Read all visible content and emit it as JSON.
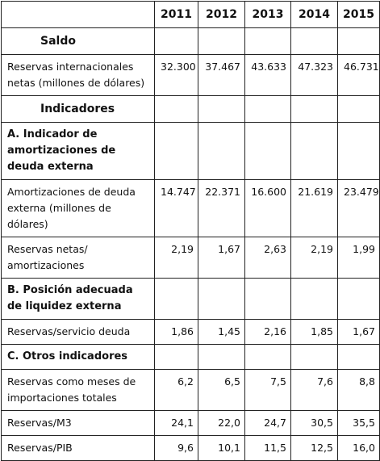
{
  "table": {
    "years": [
      "2011",
      "2012",
      "2013",
      "2014",
      "2015"
    ],
    "sections": [
      {
        "title": "Saldo",
        "groups": [
          {
            "rows": [
              {
                "label": "Reservas internacionales netas (millones de dólares)",
                "values": [
                  "32.300",
                  "37.467",
                  "43.633",
                  "47.323",
                  "46.731"
                ]
              }
            ]
          }
        ]
      },
      {
        "title": "Indicadores",
        "groups": [
          {
            "title": "A. Indicador de amortizaciones de deuda externa",
            "rows": [
              {
                "label": "Amortizaciones de deuda externa (millones de dólares)",
                "values": [
                  "14.747",
                  "22.371",
                  "16.600",
                  "21.619",
                  "23.479"
                ]
              },
              {
                "label": "Reservas netas/ amortizaciones",
                "values": [
                  "2,19",
                  "1,67",
                  "2,63",
                  "2,19",
                  "1,99"
                ]
              }
            ]
          },
          {
            "title": "B. Posición adecuada de liquidez externa",
            "rows": [
              {
                "label": "Reservas/servicio deuda",
                "values": [
                  "1,86",
                  "1,45",
                  "2,16",
                  "1,85",
                  "1,67"
                ]
              }
            ]
          },
          {
            "title": "C. Otros indicadores",
            "rows": [
              {
                "label": "Reservas como meses de importaciones totales",
                "values": [
                  "6,2",
                  "6,5",
                  "7,5",
                  "7,6",
                  "8,8"
                ]
              },
              {
                "label": "Reservas/M3",
                "values": [
                  "24,1",
                  "22,0",
                  "24,7",
                  "30,5",
                  "35,5"
                ]
              },
              {
                "label": "Reservas/PIB",
                "values": [
                  "9,6",
                  "10,1",
                  "11,5",
                  "12,5",
                  "16,0"
                ]
              }
            ]
          }
        ]
      }
    ]
  }
}
